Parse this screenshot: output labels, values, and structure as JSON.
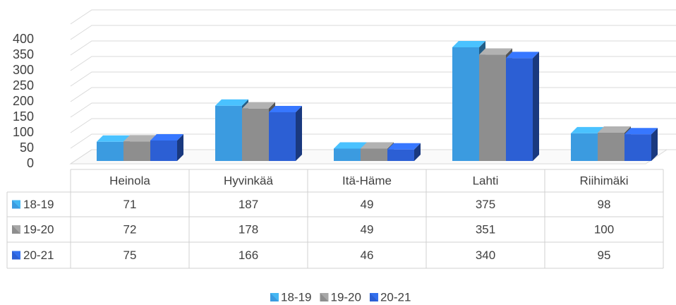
{
  "chart_data": {
    "type": "bar3d",
    "categories": [
      "Heinola",
      "Hyvinkää",
      "Itä-Häme",
      "Lahti",
      "Riihimäki"
    ],
    "series": [
      {
        "name": "18-19",
        "color": "#3b9be0",
        "values": [
          71,
          187,
          49,
          375,
          98
        ]
      },
      {
        "name": "19-20",
        "color": "#8e8e8e",
        "values": [
          72,
          178,
          49,
          351,
          100
        ]
      },
      {
        "name": "20-21",
        "color": "#2c5fd4",
        "values": [
          75,
          166,
          46,
          340,
          95
        ]
      }
    ],
    "ylim": [
      0,
      450
    ],
    "yticks": [
      0,
      50,
      100,
      150,
      200,
      250,
      300,
      350,
      400
    ],
    "grid": true,
    "data_table": true,
    "legend": "bottom"
  }
}
